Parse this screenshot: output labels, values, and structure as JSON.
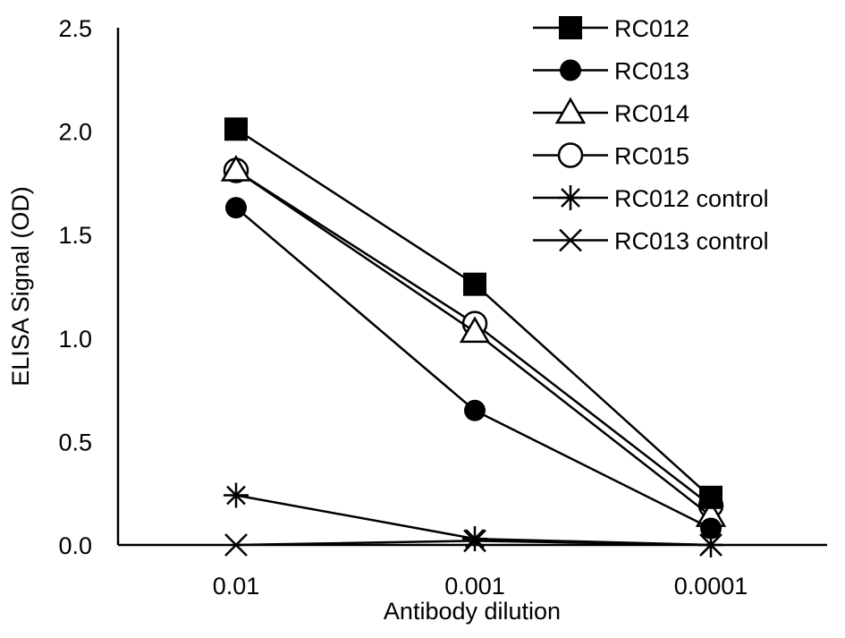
{
  "chart_data": {
    "type": "line",
    "title": "",
    "xlabel": "Antibody dilution",
    "ylabel": "ELISA Signal (OD)",
    "categories": [
      "0.01",
      "0.001",
      "0.0001"
    ],
    "ylim": [
      0,
      2.5
    ],
    "yticks": [
      "0.0",
      "0.5",
      "1.0",
      "1.5",
      "2.0",
      "2.5"
    ],
    "grid": false,
    "legend_position": "top-right",
    "line_color": "#000000",
    "series": [
      {
        "name": "RC012",
        "marker": "filled-square",
        "values": [
          2.01,
          1.26,
          0.23
        ]
      },
      {
        "name": "RC013",
        "marker": "filled-circle",
        "values": [
          1.63,
          0.65,
          0.08
        ]
      },
      {
        "name": "RC014",
        "marker": "open-triangle",
        "values": [
          1.81,
          1.03,
          0.14
        ]
      },
      {
        "name": "RC015",
        "marker": "open-circle",
        "values": [
          1.81,
          1.07,
          0.19
        ]
      },
      {
        "name": "RC012 control",
        "marker": "asterisk",
        "values": [
          0.24,
          0.03,
          0.0
        ]
      },
      {
        "name": "RC013 control",
        "marker": "x",
        "values": [
          0.0,
          0.02,
          0.0
        ]
      }
    ]
  }
}
